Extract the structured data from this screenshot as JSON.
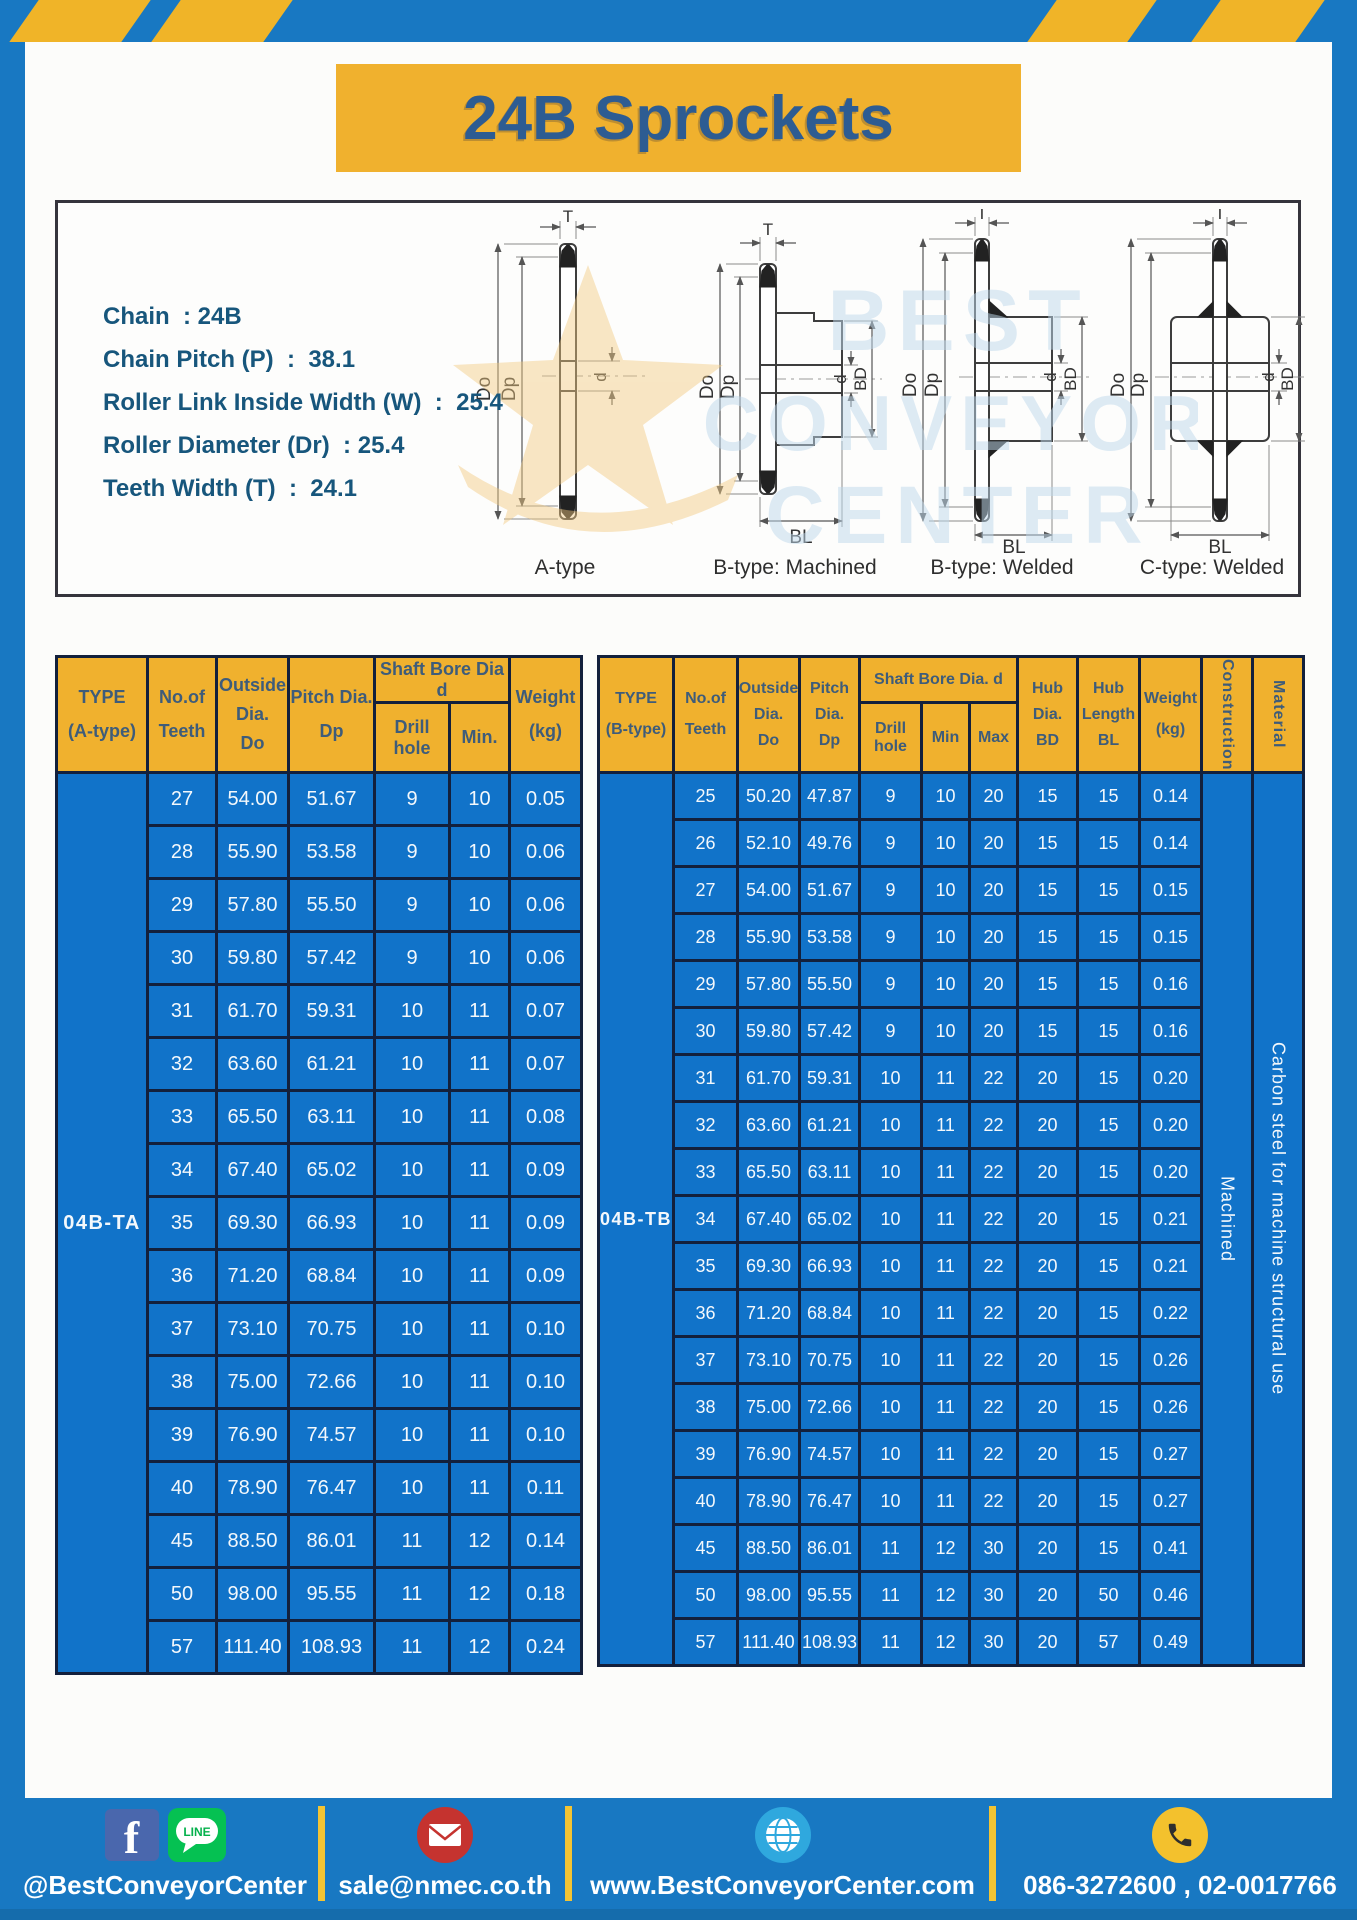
{
  "page": {
    "title": "24B Sprockets"
  },
  "specs": {
    "lines": [
      "Chain  : 24B",
      "Chain Pitch (P)  :  38.1",
      "Roller Link Inside Width (W)  :  25.4",
      "Roller Diameter (Dr)  : 25.4",
      "Teeth Width (T)  :  24.1"
    ]
  },
  "watermark": {
    "l1": "BEST",
    "l2": "CONVEYOR",
    "l3": "CENTER"
  },
  "diagrams": {
    "a": {
      "caption": "A-type",
      "t": "T",
      "do": "Do",
      "dp": "Dp",
      "d": "d"
    },
    "bm": {
      "caption": "B-type: Machined",
      "t": "T",
      "do": "Do",
      "dp": "Dp",
      "d": "d",
      "bd": "BD",
      "bl": "BL"
    },
    "bw": {
      "caption": "B-type: Welded",
      "t": "T",
      "do": "Do",
      "dp": "Dp",
      "d": "d",
      "bd": "BD",
      "bl": "BL"
    },
    "cw": {
      "caption": "C-type: Welded",
      "t": "T",
      "do": "Do",
      "dp": "Dp",
      "d": "d",
      "bd": "BD",
      "bl": "BL"
    }
  },
  "table_a": {
    "title": {
      "l1": "TYPE",
      "l2": "(A-type)"
    },
    "col_teeth": {
      "l1": "No.of",
      "l2": "Teeth"
    },
    "col_outside": {
      "l1": "Outside",
      "l2": "Dia.",
      "l3": "Do"
    },
    "col_pitch": {
      "l1": "Pitch Dia.",
      "l2": "Dp"
    },
    "col_shaft": "Shaft Bore Dia d",
    "col_drill": "Drill hole",
    "col_min": "Min.",
    "col_weight": {
      "l1": "Weight",
      "l2": "(kg)"
    },
    "type_label": "04B-TA",
    "rows": [
      [
        "27",
        "54.00",
        "51.67",
        "9",
        "10",
        "0.05"
      ],
      [
        "28",
        "55.90",
        "53.58",
        "9",
        "10",
        "0.06"
      ],
      [
        "29",
        "57.80",
        "55.50",
        "9",
        "10",
        "0.06"
      ],
      [
        "30",
        "59.80",
        "57.42",
        "9",
        "10",
        "0.06"
      ],
      [
        "31",
        "61.70",
        "59.31",
        "10",
        "11",
        "0.07"
      ],
      [
        "32",
        "63.60",
        "61.21",
        "10",
        "11",
        "0.07"
      ],
      [
        "33",
        "65.50",
        "63.11",
        "10",
        "11",
        "0.08"
      ],
      [
        "34",
        "67.40",
        "65.02",
        "10",
        "11",
        "0.09"
      ],
      [
        "35",
        "69.30",
        "66.93",
        "10",
        "11",
        "0.09"
      ],
      [
        "36",
        "71.20",
        "68.84",
        "10",
        "11",
        "0.09"
      ],
      [
        "37",
        "73.10",
        "70.75",
        "10",
        "11",
        "0.10"
      ],
      [
        "38",
        "75.00",
        "72.66",
        "10",
        "11",
        "0.10"
      ],
      [
        "39",
        "76.90",
        "74.57",
        "10",
        "11",
        "0.10"
      ],
      [
        "40",
        "78.90",
        "76.47",
        "10",
        "11",
        "0.11"
      ],
      [
        "45",
        "88.50",
        "86.01",
        "11",
        "12",
        "0.14"
      ],
      [
        "50",
        "98.00",
        "95.55",
        "11",
        "12",
        "0.18"
      ],
      [
        "57",
        "111.40",
        "108.93",
        "11",
        "12",
        "0.24"
      ]
    ]
  },
  "table_b": {
    "title": {
      "l1": "TYPE",
      "l2": "(B-type)"
    },
    "col_teeth": {
      "l1": "No.of",
      "l2": "Teeth"
    },
    "col_outside": {
      "l1": "Outside",
      "l2": "Dia.",
      "l3": "Do"
    },
    "col_pitch": {
      "l1": "Pitch",
      "l2": "Dia.",
      "l3": "Dp"
    },
    "col_shaft": "Shaft Bore Dia.  d",
    "col_drill": "Drill hole",
    "col_min": "Min",
    "col_max": "Max",
    "col_hubdia": {
      "l1": "Hub",
      "l2": "Dia.",
      "l3": "BD"
    },
    "col_hublen": {
      "l1": "Hub",
      "l2": "Length",
      "l3": "BL"
    },
    "col_weight": {
      "l1": "Weight",
      "l2": "(kg)"
    },
    "col_construction": "Construction",
    "col_material": "Material",
    "type_label": "04B-TB",
    "construction": "Machined",
    "material": "Carbon steel for machine structural use",
    "rows": [
      [
        "25",
        "50.20",
        "47.87",
        "9",
        "10",
        "20",
        "15",
        "15",
        "0.14"
      ],
      [
        "26",
        "52.10",
        "49.76",
        "9",
        "10",
        "20",
        "15",
        "15",
        "0.14"
      ],
      [
        "27",
        "54.00",
        "51.67",
        "9",
        "10",
        "20",
        "15",
        "15",
        "0.15"
      ],
      [
        "28",
        "55.90",
        "53.58",
        "9",
        "10",
        "20",
        "15",
        "15",
        "0.15"
      ],
      [
        "29",
        "57.80",
        "55.50",
        "9",
        "10",
        "20",
        "15",
        "15",
        "0.16"
      ],
      [
        "30",
        "59.80",
        "57.42",
        "9",
        "10",
        "20",
        "15",
        "15",
        "0.16"
      ],
      [
        "31",
        "61.70",
        "59.31",
        "10",
        "11",
        "22",
        "20",
        "15",
        "0.20"
      ],
      [
        "32",
        "63.60",
        "61.21",
        "10",
        "11",
        "22",
        "20",
        "15",
        "0.20"
      ],
      [
        "33",
        "65.50",
        "63.11",
        "10",
        "11",
        "22",
        "20",
        "15",
        "0.20"
      ],
      [
        "34",
        "67.40",
        "65.02",
        "10",
        "11",
        "22",
        "20",
        "15",
        "0.21"
      ],
      [
        "35",
        "69.30",
        "66.93",
        "10",
        "11",
        "22",
        "20",
        "15",
        "0.21"
      ],
      [
        "36",
        "71.20",
        "68.84",
        "10",
        "11",
        "22",
        "20",
        "15",
        "0.22"
      ],
      [
        "37",
        "73.10",
        "70.75",
        "10",
        "11",
        "22",
        "20",
        "15",
        "0.26"
      ],
      [
        "38",
        "75.00",
        "72.66",
        "10",
        "11",
        "22",
        "20",
        "15",
        "0.26"
      ],
      [
        "39",
        "76.90",
        "74.57",
        "10",
        "11",
        "22",
        "20",
        "15",
        "0.27"
      ],
      [
        "40",
        "78.90",
        "76.47",
        "10",
        "11",
        "22",
        "20",
        "15",
        "0.27"
      ],
      [
        "45",
        "88.50",
        "86.01",
        "11",
        "12",
        "30",
        "20",
        "15",
        "0.41"
      ],
      [
        "50",
        "98.00",
        "95.55",
        "11",
        "12",
        "30",
        "20",
        "50",
        "0.46"
      ],
      [
        "57",
        "111.40",
        "108.93",
        "11",
        "12",
        "30",
        "20",
        "57",
        "0.49"
      ]
    ]
  },
  "footer": {
    "facebook_letter": "f",
    "line_badge": "LINE",
    "social_label": "@BestConveyorCenter",
    "email": "sale@nmec.co.th",
    "website": "www.BestConveyorCenter.com",
    "phone": "086-3272600 , 02-0017766"
  }
}
